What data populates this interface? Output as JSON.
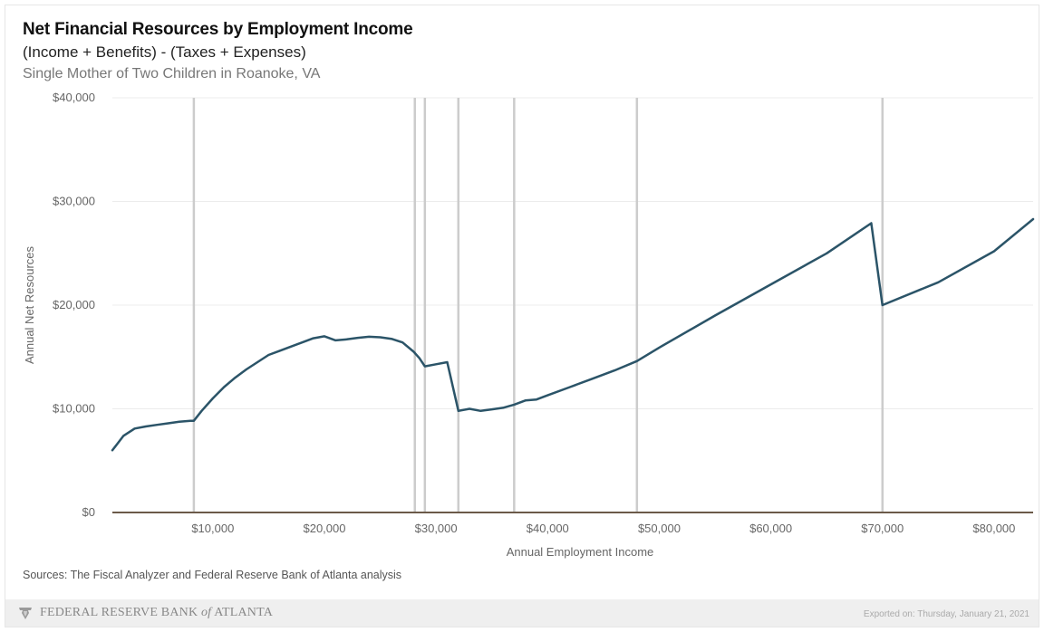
{
  "header": {
    "title": "Net Financial Resources by Employment Income",
    "subtitle": "(Income + Benefits) - (Taxes + Expenses)",
    "subtitle2": "Single Mother of Two Children in Roanoke, VA"
  },
  "sources": "Sources: The Fiscal Analyzer and Federal Reserve Bank of Atlanta analysis",
  "footer": {
    "org_main": "FEDERAL RESERVE BANK",
    "org_of": "of",
    "org_city": "ATLANTA",
    "logo_icon": "eagle-shield-icon",
    "exported": "Exported on: Thursday, January 21, 2021"
  },
  "chart_data": {
    "type": "line",
    "title": "Net Financial Resources by Employment Income",
    "xlabel": "Annual Employment Income",
    "ylabel": "Annual Net Resources",
    "xlim": [
      1000,
      83500
    ],
    "ylim": [
      0,
      40000
    ],
    "x_ticks": [
      10000,
      20000,
      30000,
      40000,
      50000,
      60000,
      70000,
      80000
    ],
    "x_tick_labels": [
      "$10,000",
      "$20,000",
      "$30,000",
      "$40,000",
      "$50,000",
      "$60,000",
      "$70,000",
      "$80,000"
    ],
    "y_ticks": [
      0,
      10000,
      20000,
      30000,
      40000
    ],
    "y_tick_labels": [
      "$0",
      "$10,000",
      "$20,000",
      "$30,000",
      "$40,000"
    ],
    "grid": true,
    "reference_lines_x": [
      8300,
      28100,
      29000,
      32000,
      37000,
      48000,
      70000
    ],
    "line_color": "#2b5468",
    "reference_line_color": "#cccccc",
    "series": [
      {
        "name": "",
        "x": [
          1000,
          2000,
          3000,
          4000,
          5000,
          6000,
          7000,
          8000,
          8300,
          9000,
          10000,
          11000,
          12000,
          13000,
          14000,
          15000,
          16000,
          17000,
          18000,
          19000,
          20000,
          21000,
          22000,
          23000,
          24000,
          25000,
          26000,
          27000,
          28000,
          28500,
          29000,
          30000,
          31000,
          32000,
          33000,
          34000,
          35000,
          36000,
          37000,
          38000,
          39000,
          40000,
          42000,
          44000,
          46000,
          48000,
          50000,
          55000,
          60000,
          65000,
          69000,
          70000,
          75000,
          80000,
          83500
        ],
        "y": [
          6000,
          7400,
          8100,
          8300,
          8450,
          8600,
          8750,
          8850,
          8850,
          9800,
          11000,
          12100,
          13000,
          13800,
          14500,
          15200,
          15600,
          16000,
          16400,
          16800,
          17000,
          16600,
          16700,
          16850,
          16950,
          16900,
          16750,
          16400,
          15500,
          14900,
          14100,
          14300,
          14500,
          9800,
          10000,
          9800,
          9950,
          10100,
          10400,
          10800,
          10900,
          11300,
          12100,
          12900,
          13700,
          14600,
          15900,
          19000,
          22000,
          25000,
          27900,
          20000,
          22200,
          25200,
          28300
        ]
      }
    ]
  }
}
